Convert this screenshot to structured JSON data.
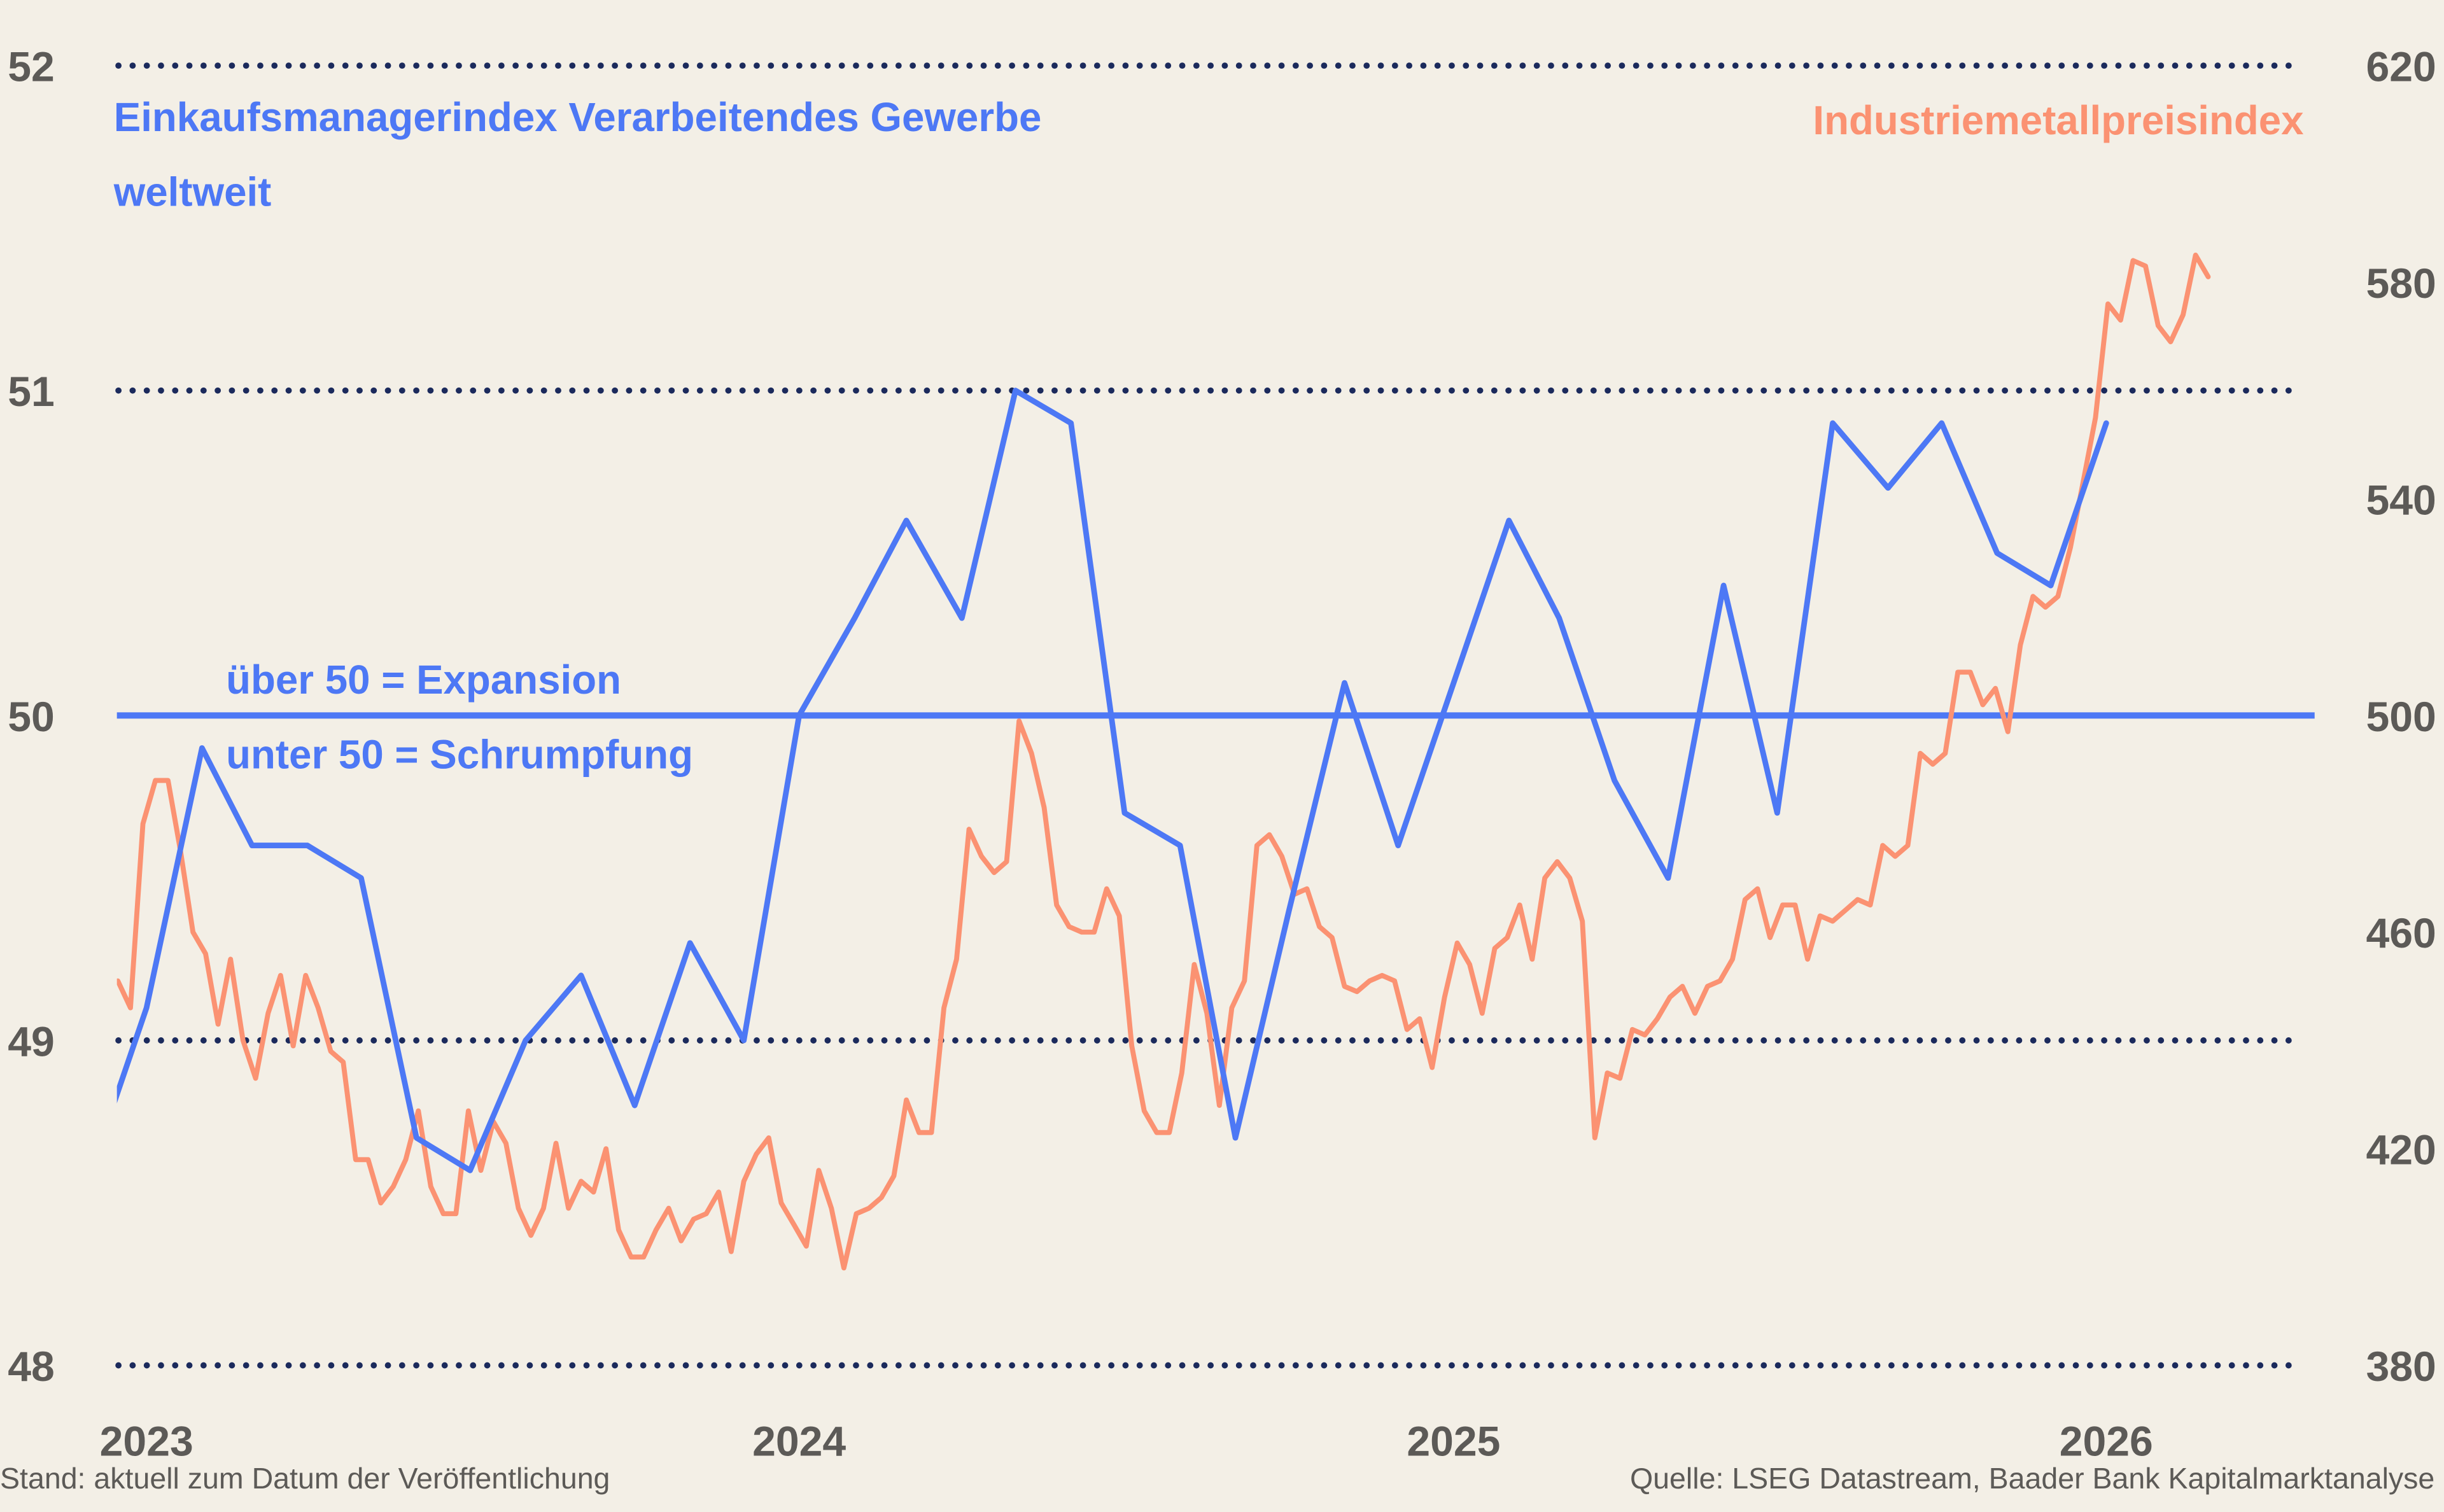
{
  "colors": {
    "pmi": "#4d78f5",
    "metal": "#fb9272",
    "grid": "#1b2a5c",
    "background": "#f3efe6",
    "text": "#5c5a57"
  },
  "titles": {
    "pmi_line1": "Einkaufsmanagerindex Verarbeitendes Gewerbe",
    "pmi_line2": "weltweit",
    "metal": "Industriemetallpreisindex"
  },
  "annotations": {
    "above": "über 50 = Expansion",
    "below": "unter 50 = Schrumpfung"
  },
  "footer": {
    "left": "Stand: aktuell zum Datum der Veröffentlichung",
    "right": "Quelle: LSEG Datastream, Baader Bank Kapitalmarktanalyse"
  },
  "chart_data": {
    "type": "line",
    "x_type": "date",
    "xlim": [
      "2022-12-15",
      "2026-04-27"
    ],
    "x_ticks": [
      "2023",
      "2024",
      "2025",
      "2026"
    ],
    "y_left": {
      "lim": [
        48,
        52
      ],
      "ticks": [
        "48",
        "49",
        "50",
        "51",
        "52"
      ],
      "reference_line": 50
    },
    "y_right": {
      "lim": [
        380,
        620
      ],
      "ticks": [
        "380",
        "420",
        "460",
        "500",
        "540",
        "580",
        "620"
      ]
    },
    "grid": "dotted horizontal at left ticks 48, 49, 51, 52; solid line at 50",
    "legend": "text labels top-left (PMI) and top-right (metal index)",
    "series": [
      {
        "name": "Einkaufsmanagerindex Verarbeitendes Gewerbe weltweit",
        "axis": "left",
        "points": [
          [
            "2022-12-01",
            48.6
          ],
          [
            "2023-01-01",
            49.1
          ],
          [
            "2023-02-01",
            49.9
          ],
          [
            "2023-03-01",
            49.6
          ],
          [
            "2023-04-01",
            49.6
          ],
          [
            "2023-05-01",
            49.5
          ],
          [
            "2023-06-01",
            48.7
          ],
          [
            "2023-07-01",
            48.6
          ],
          [
            "2023-08-01",
            49.0
          ],
          [
            "2023-09-01",
            49.2
          ],
          [
            "2023-10-01",
            48.8
          ],
          [
            "2023-11-01",
            49.3
          ],
          [
            "2023-12-01",
            49.0
          ],
          [
            "2024-01-01",
            50.0
          ],
          [
            "2024-02-01",
            50.3
          ],
          [
            "2024-03-01",
            50.6
          ],
          [
            "2024-04-01",
            50.3
          ],
          [
            "2024-05-01",
            51.0
          ],
          [
            "2024-06-01",
            50.9
          ],
          [
            "2024-07-01",
            49.7
          ],
          [
            "2024-08-01",
            49.6
          ],
          [
            "2024-09-01",
            48.7
          ],
          [
            "2024-10-01",
            49.4
          ],
          [
            "2024-11-01",
            50.1
          ],
          [
            "2024-12-01",
            49.6
          ],
          [
            "2025-01-01",
            50.1
          ],
          [
            "2025-02-01",
            50.6
          ],
          [
            "2025-03-01",
            50.3
          ],
          [
            "2025-04-01",
            49.8
          ],
          [
            "2025-05-01",
            49.5
          ],
          [
            "2025-06-01",
            50.4
          ],
          [
            "2025-07-01",
            49.7
          ],
          [
            "2025-08-01",
            50.9
          ],
          [
            "2025-09-01",
            50.7
          ],
          [
            "2025-10-01",
            50.9
          ],
          [
            "2025-11-01",
            50.5
          ],
          [
            "2025-12-01",
            50.4
          ],
          [
            "2026-01-01",
            50.9
          ]
        ]
      },
      {
        "name": "Industriemetallpreisindex",
        "axis": "right",
        "points": [
          [
            "2022-12-16",
            451
          ],
          [
            "2022-12-23",
            446
          ],
          [
            "2022-12-30",
            480
          ],
          [
            "2023-01-06",
            488
          ],
          [
            "2023-01-13",
            488
          ],
          [
            "2023-01-20",
            475
          ],
          [
            "2023-01-27",
            460
          ],
          [
            "2023-02-03",
            456
          ],
          [
            "2023-02-10",
            443
          ],
          [
            "2023-02-17",
            455
          ],
          [
            "2023-02-24",
            440
          ],
          [
            "2023-03-03",
            433
          ],
          [
            "2023-03-10",
            445
          ],
          [
            "2023-03-17",
            452
          ],
          [
            "2023-03-24",
            439
          ],
          [
            "2023-03-31",
            452
          ],
          [
            "2023-04-07",
            446
          ],
          [
            "2023-04-14",
            438
          ],
          [
            "2023-04-21",
            436
          ],
          [
            "2023-04-28",
            418
          ],
          [
            "2023-05-05",
            418
          ],
          [
            "2023-05-12",
            410
          ],
          [
            "2023-05-19",
            413
          ],
          [
            "2023-05-26",
            418
          ],
          [
            "2023-06-02",
            427
          ],
          [
            "2023-06-09",
            413
          ],
          [
            "2023-06-16",
            408
          ],
          [
            "2023-06-23",
            408
          ],
          [
            "2023-06-30",
            427
          ],
          [
            "2023-07-07",
            416
          ],
          [
            "2023-07-14",
            425
          ],
          [
            "2023-07-21",
            421
          ],
          [
            "2023-07-28",
            409
          ],
          [
            "2023-08-04",
            404
          ],
          [
            "2023-08-11",
            409
          ],
          [
            "2023-08-18",
            421
          ],
          [
            "2023-08-25",
            409
          ],
          [
            "2023-09-01",
            414
          ],
          [
            "2023-09-08",
            412
          ],
          [
            "2023-09-15",
            420
          ],
          [
            "2023-09-22",
            405
          ],
          [
            "2023-09-29",
            400
          ],
          [
            "2023-10-06",
            400
          ],
          [
            "2023-10-13",
            405
          ],
          [
            "2023-10-20",
            409
          ],
          [
            "2023-10-27",
            403
          ],
          [
            "2023-11-03",
            407
          ],
          [
            "2023-11-10",
            408
          ],
          [
            "2023-11-17",
            412
          ],
          [
            "2023-11-24",
            401
          ],
          [
            "2023-12-01",
            414
          ],
          [
            "2023-12-08",
            419
          ],
          [
            "2023-12-15",
            422
          ],
          [
            "2023-12-22",
            410
          ],
          [
            "2023-12-29",
            406
          ],
          [
            "2024-01-05",
            402
          ],
          [
            "2024-01-12",
            416
          ],
          [
            "2024-01-19",
            409
          ],
          [
            "2024-01-26",
            398
          ],
          [
            "2024-02-02",
            408
          ],
          [
            "2024-02-09",
            409
          ],
          [
            "2024-02-16",
            411
          ],
          [
            "2024-02-23",
            415
          ],
          [
            "2024-03-01",
            429
          ],
          [
            "2024-03-08",
            423
          ],
          [
            "2024-03-15",
            423
          ],
          [
            "2024-03-22",
            446
          ],
          [
            "2024-03-29",
            455
          ],
          [
            "2024-04-05",
            479
          ],
          [
            "2024-04-12",
            474
          ],
          [
            "2024-04-19",
            471
          ],
          [
            "2024-04-26",
            473
          ],
          [
            "2024-05-03",
            499
          ],
          [
            "2024-05-10",
            493
          ],
          [
            "2024-05-17",
            483
          ],
          [
            "2024-05-24",
            465
          ],
          [
            "2024-05-31",
            461
          ],
          [
            "2024-06-07",
            460
          ],
          [
            "2024-06-14",
            460
          ],
          [
            "2024-06-21",
            468
          ],
          [
            "2024-06-28",
            463
          ],
          [
            "2024-07-05",
            439
          ],
          [
            "2024-07-12",
            427
          ],
          [
            "2024-07-19",
            423
          ],
          [
            "2024-07-26",
            423
          ],
          [
            "2024-08-02",
            434
          ],
          [
            "2024-08-09",
            454
          ],
          [
            "2024-08-16",
            445
          ],
          [
            "2024-08-23",
            428
          ],
          [
            "2024-08-30",
            446
          ],
          [
            "2024-09-06",
            451
          ],
          [
            "2024-09-13",
            476
          ],
          [
            "2024-09-20",
            478
          ],
          [
            "2024-09-27",
            474
          ],
          [
            "2024-10-04",
            467
          ],
          [
            "2024-10-11",
            468
          ],
          [
            "2024-10-18",
            461
          ],
          [
            "2024-10-25",
            459
          ],
          [
            "2024-11-01",
            450
          ],
          [
            "2024-11-08",
            449
          ],
          [
            "2024-11-15",
            451
          ],
          [
            "2024-11-22",
            452
          ],
          [
            "2024-11-29",
            451
          ],
          [
            "2024-12-06",
            442
          ],
          [
            "2024-12-13",
            444
          ],
          [
            "2024-12-20",
            435
          ],
          [
            "2024-12-27",
            448
          ],
          [
            "2025-01-03",
            458
          ],
          [
            "2025-01-10",
            454
          ],
          [
            "2025-01-17",
            445
          ],
          [
            "2025-01-24",
            457
          ],
          [
            "2025-01-31",
            459
          ],
          [
            "2025-02-07",
            465
          ],
          [
            "2025-02-14",
            455
          ],
          [
            "2025-02-21",
            470
          ],
          [
            "2025-02-28",
            473
          ],
          [
            "2025-03-07",
            470
          ],
          [
            "2025-03-14",
            462
          ],
          [
            "2025-03-21",
            422
          ],
          [
            "2025-03-28",
            434
          ],
          [
            "2025-04-04",
            433
          ],
          [
            "2025-04-11",
            442
          ],
          [
            "2025-04-18",
            441
          ],
          [
            "2025-04-25",
            444
          ],
          [
            "2025-05-02",
            448
          ],
          [
            "2025-05-09",
            450
          ],
          [
            "2025-05-16",
            445
          ],
          [
            "2025-05-23",
            450
          ],
          [
            "2025-05-30",
            451
          ],
          [
            "2025-06-06",
            455
          ],
          [
            "2025-06-13",
            466
          ],
          [
            "2025-06-20",
            468
          ],
          [
            "2025-06-27",
            459
          ],
          [
            "2025-07-04",
            465
          ],
          [
            "2025-07-11",
            465
          ],
          [
            "2025-07-18",
            455
          ],
          [
            "2025-07-25",
            463
          ],
          [
            "2025-08-01",
            462
          ],
          [
            "2025-08-08",
            464
          ],
          [
            "2025-08-15",
            466
          ],
          [
            "2025-08-22",
            465
          ],
          [
            "2025-08-29",
            476
          ],
          [
            "2025-09-05",
            474
          ],
          [
            "2025-09-12",
            476
          ],
          [
            "2025-09-19",
            493
          ],
          [
            "2025-09-26",
            491
          ],
          [
            "2025-10-03",
            493
          ],
          [
            "2025-10-10",
            508
          ],
          [
            "2025-10-17",
            508
          ],
          [
            "2025-10-24",
            502
          ],
          [
            "2025-10-31",
            505
          ],
          [
            "2025-11-07",
            497
          ],
          [
            "2025-11-14",
            513
          ],
          [
            "2025-11-21",
            522
          ],
          [
            "2025-11-28",
            520
          ],
          [
            "2025-12-05",
            522
          ],
          [
            "2025-12-12",
            531
          ],
          [
            "2025-12-19",
            543
          ],
          [
            "2025-12-26",
            555
          ],
          [
            "2026-01-02",
            576
          ],
          [
            "2026-01-09",
            573
          ],
          [
            "2026-01-16",
            584
          ],
          [
            "2026-01-23",
            583
          ],
          [
            "2026-01-30",
            572
          ],
          [
            "2026-02-06",
            569
          ],
          [
            "2026-02-13",
            574
          ],
          [
            "2026-02-20",
            585
          ],
          [
            "2026-02-27",
            581
          ]
        ]
      }
    ]
  }
}
